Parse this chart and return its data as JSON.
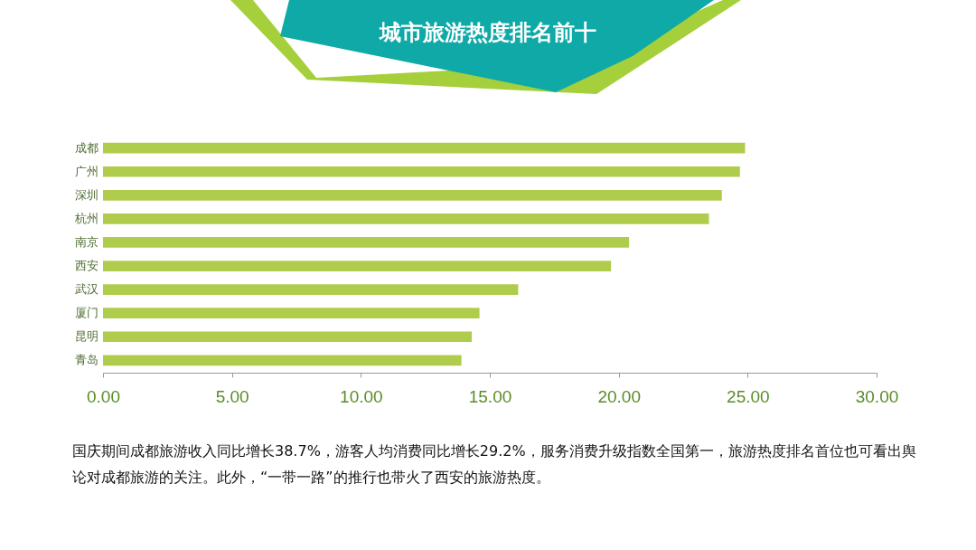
{
  "chart_data": {
    "type": "bar",
    "orientation": "horizontal",
    "title": "城市旅游热度排名前十",
    "categories": [
      "成都",
      "广州",
      "深圳",
      "杭州",
      "南京",
      "西安",
      "武汉",
      "厦门",
      "昆明",
      "青岛"
    ],
    "values": [
      24.9,
      24.7,
      24.0,
      23.5,
      20.4,
      19.7,
      16.1,
      14.6,
      14.3,
      13.9
    ],
    "color": "#b0cc4c",
    "xlim": [
      0,
      30
    ],
    "xticks": [
      {
        "value": 0,
        "label": "0.00"
      },
      {
        "value": 5,
        "label": "5.00"
      },
      {
        "value": 10,
        "label": "10.00"
      },
      {
        "value": 15,
        "label": "15.00"
      },
      {
        "value": 20,
        "label": "20.00"
      },
      {
        "value": 25,
        "label": "25.00"
      },
      {
        "value": 30,
        "label": "30.00"
      }
    ],
    "annotations": [
      "国庆期间成都旅游收入同比增长38.7%，游客人均消费同比增长29.2%，服务消费升级指数全国第一，旅游热度排名首位也可看出舆论对成都旅游的关注。此外，“一带一路”的推行也带火了西安的旅游热度。"
    ]
  }
}
